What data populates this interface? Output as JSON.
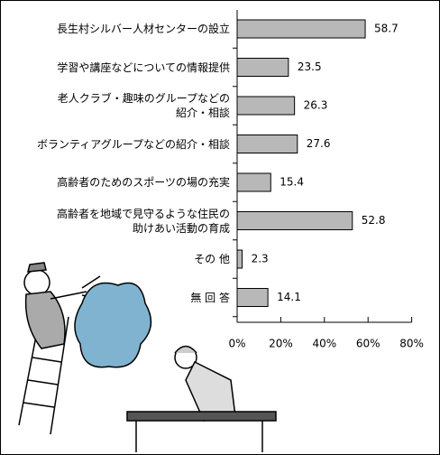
{
  "chart_data": {
    "type": "bar",
    "orientation": "horizontal",
    "categories": [
      "長生村シルバー人材センターの設立",
      "学習や講座などについての情報提供",
      "老人クラブ・趣味のグループなどの\n紹介・相談",
      "ボランティアグループなどの紹介・相談",
      "高齢者のためのスポーツの場の充実",
      "高齢者を地域で見守るような住民の\n助けあい活動の育成",
      "その 他",
      "無 回 答"
    ],
    "values": [
      58.7,
      23.5,
      26.3,
      27.6,
      15.4,
      52.8,
      2.3,
      14.1
    ],
    "color": "#b8b8b8",
    "xlim": [
      0,
      80
    ],
    "xticks": [
      {
        "value": 0,
        "label": "0%"
      },
      {
        "value": 20,
        "label": "20%"
      },
      {
        "value": 40,
        "label": "40%"
      },
      {
        "value": 60,
        "label": "60%"
      },
      {
        "value": 80,
        "label": "80%"
      }
    ]
  }
}
